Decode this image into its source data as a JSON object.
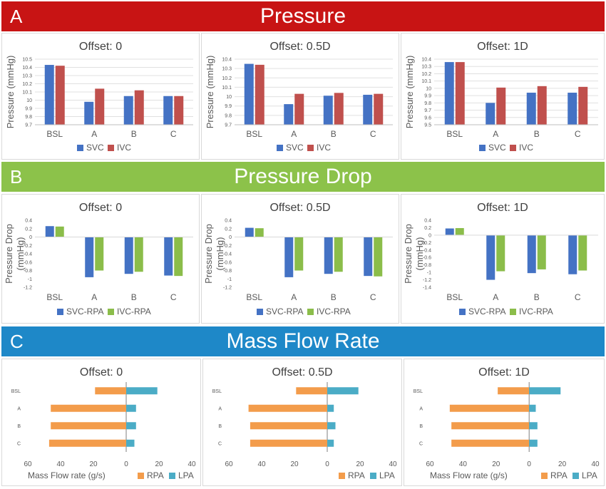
{
  "sections": {
    "A": {
      "letter": "A",
      "title": "Pressure",
      "color": "#c81414"
    },
    "B": {
      "letter": "B",
      "title": "Pressure Drop",
      "color": "#8cc24a"
    },
    "C": {
      "letter": "C",
      "title": "Mass Flow Rate",
      "color": "#1e88c8"
    }
  },
  "colors": {
    "svc": "#4472c4",
    "ivc": "#c0504d",
    "green": "#8bbd4a",
    "rpa": "#f39c4b",
    "lpa": "#4bacc6"
  },
  "chart_data": [
    {
      "type": "bar",
      "section": "A",
      "title": "Offset: 0",
      "ylabel": "Pressure (mmHg)",
      "categories": [
        "BSL",
        "A",
        "B",
        "C"
      ],
      "ylim": [
        9.7,
        10.5
      ],
      "yticks": [
        "9.7",
        "9.8",
        "9.9",
        "10",
        "10.1",
        "10.2",
        "10.3",
        "10.4",
        "10.5"
      ],
      "series": [
        {
          "name": "SVC",
          "values": [
            10.43,
            9.98,
            10.05,
            10.05
          ]
        },
        {
          "name": "IVC",
          "values": [
            10.42,
            10.14,
            10.12,
            10.05
          ]
        }
      ]
    },
    {
      "type": "bar",
      "section": "A",
      "title": "Offset: 0.5D",
      "ylabel": "Pressure (mmHg)",
      "categories": [
        "BSL",
        "A",
        "B",
        "C"
      ],
      "ylim": [
        9.7,
        10.4
      ],
      "yticks": [
        "9.7",
        "9.8",
        "9.9",
        "10",
        "10.1",
        "10.2",
        "10.3",
        "10.4"
      ],
      "series": [
        {
          "name": "SVC",
          "values": [
            10.35,
            9.92,
            10.01,
            10.02
          ]
        },
        {
          "name": "IVC",
          "values": [
            10.34,
            10.03,
            10.04,
            10.03
          ]
        }
      ]
    },
    {
      "type": "bar",
      "section": "A",
      "title": "Offset: 1D",
      "ylabel": "Pressure (mmHg)",
      "categories": [
        "BSL",
        "A",
        "B",
        "C"
      ],
      "ylim": [
        9.5,
        10.4
      ],
      "yticks": [
        "9.5",
        "9.6",
        "9.7",
        "9.8",
        "9.9",
        "10",
        "10.1",
        "10.2",
        "10.3",
        "10.4"
      ],
      "series": [
        {
          "name": "SVC",
          "values": [
            10.36,
            9.8,
            9.94,
            9.94
          ]
        },
        {
          "name": "IVC",
          "values": [
            10.36,
            10.01,
            10.03,
            10.02
          ]
        }
      ]
    },
    {
      "type": "bar",
      "section": "B",
      "title": "Offset: 0",
      "ylabel": "Pressure Drop (mmHg)",
      "ylabel_lines": [
        "Pressure Drop",
        "(mmHg)"
      ],
      "categories": [
        "BSL",
        "A",
        "B",
        "C"
      ],
      "ylim": [
        -1.2,
        0.4
      ],
      "yticks": [
        "-1.2",
        "-1",
        "-0.8",
        "-0.6",
        "-0.4",
        "-0.2",
        "0",
        "0.2",
        "0.4"
      ],
      "series": [
        {
          "name": "SVC-RPA",
          "values": [
            0.26,
            -0.96,
            -0.88,
            -0.92
          ]
        },
        {
          "name": "IVC-RPA",
          "values": [
            0.25,
            -0.8,
            -0.83,
            -0.93
          ]
        }
      ]
    },
    {
      "type": "bar",
      "section": "B",
      "title": "Offset: 0.5D",
      "ylabel": "Pressure Drop (mmHg)",
      "ylabel_lines": [
        "Pressure Drop",
        "(mmHg)"
      ],
      "categories": [
        "BSL",
        "A",
        "B",
        "C"
      ],
      "ylim": [
        -1.2,
        0.4
      ],
      "yticks": [
        "-1.2",
        "-1",
        "-0.8",
        "-0.6",
        "-0.4",
        "-0.2",
        "0",
        "0.2",
        "0.4"
      ],
      "series": [
        {
          "name": "SVC-RPA",
          "values": [
            0.22,
            -0.96,
            -0.88,
            -0.93
          ]
        },
        {
          "name": "IVC-RPA",
          "values": [
            0.21,
            -0.8,
            -0.83,
            -0.94
          ]
        }
      ]
    },
    {
      "type": "bar",
      "section": "B",
      "title": "Offset: 1D",
      "ylabel": "Pressure Drop (mmHg)",
      "ylabel_lines": [
        "Pressure Drop",
        "(mmHg)"
      ],
      "categories": [
        "BSL",
        "A",
        "B",
        "C"
      ],
      "ylim": [
        -1.4,
        0.4
      ],
      "yticks": [
        "-1.4",
        "-1.2",
        "-1",
        "-0.8",
        "-0.6",
        "-0.4",
        "-0.2",
        "0",
        "0.2",
        "0.4"
      ],
      "series": [
        {
          "name": "SVC-RPA",
          "values": [
            0.18,
            -1.2,
            -1.02,
            -1.05
          ]
        },
        {
          "name": "IVC-RPA",
          "values": [
            0.19,
            -0.97,
            -0.92,
            -0.95
          ]
        }
      ]
    },
    {
      "type": "bar",
      "orientation": "horizontal",
      "reversed_x": true,
      "section": "C",
      "title": "Offset: 0",
      "xlabel": "Mass Flow rate (g/s)",
      "categories": [
        "BSL",
        "A",
        "B",
        "C"
      ],
      "xlim": [
        -40,
        60
      ],
      "xticks": [
        "60",
        "40",
        "20",
        "0",
        "20",
        "40"
      ],
      "series": [
        {
          "name": "RPA",
          "values": [
            19,
            46,
            46,
            47
          ]
        },
        {
          "name": "LPA",
          "values": [
            19,
            6,
            6,
            5
          ]
        }
      ]
    },
    {
      "type": "bar",
      "orientation": "horizontal",
      "reversed_x": true,
      "section": "C",
      "title": "Offset: 0.5D",
      "xlabel": "",
      "categories": [
        "BSL",
        "A",
        "B",
        "C"
      ],
      "xlim": [
        -40,
        60
      ],
      "xticks": [
        "60",
        "40",
        "20",
        "0",
        "20",
        "40"
      ],
      "series": [
        {
          "name": "RPA",
          "values": [
            19,
            48,
            47,
            47
          ]
        },
        {
          "name": "LPA",
          "values": [
            19,
            4,
            5,
            4
          ]
        }
      ]
    },
    {
      "type": "bar",
      "orientation": "horizontal",
      "reversed_x": true,
      "section": "C",
      "title": "Offset: 1D",
      "xlabel": "Mass Flow rate (g/s)",
      "categories": [
        "BSL",
        "A",
        "B",
        "C"
      ],
      "xlim": [
        -40,
        60
      ],
      "xticks": [
        "60",
        "40",
        "20",
        "0",
        "20",
        "40"
      ],
      "series": [
        {
          "name": "RPA",
          "values": [
            19,
            48,
            47,
            47
          ]
        },
        {
          "name": "LPA",
          "values": [
            19,
            4,
            5,
            5
          ]
        }
      ]
    }
  ]
}
